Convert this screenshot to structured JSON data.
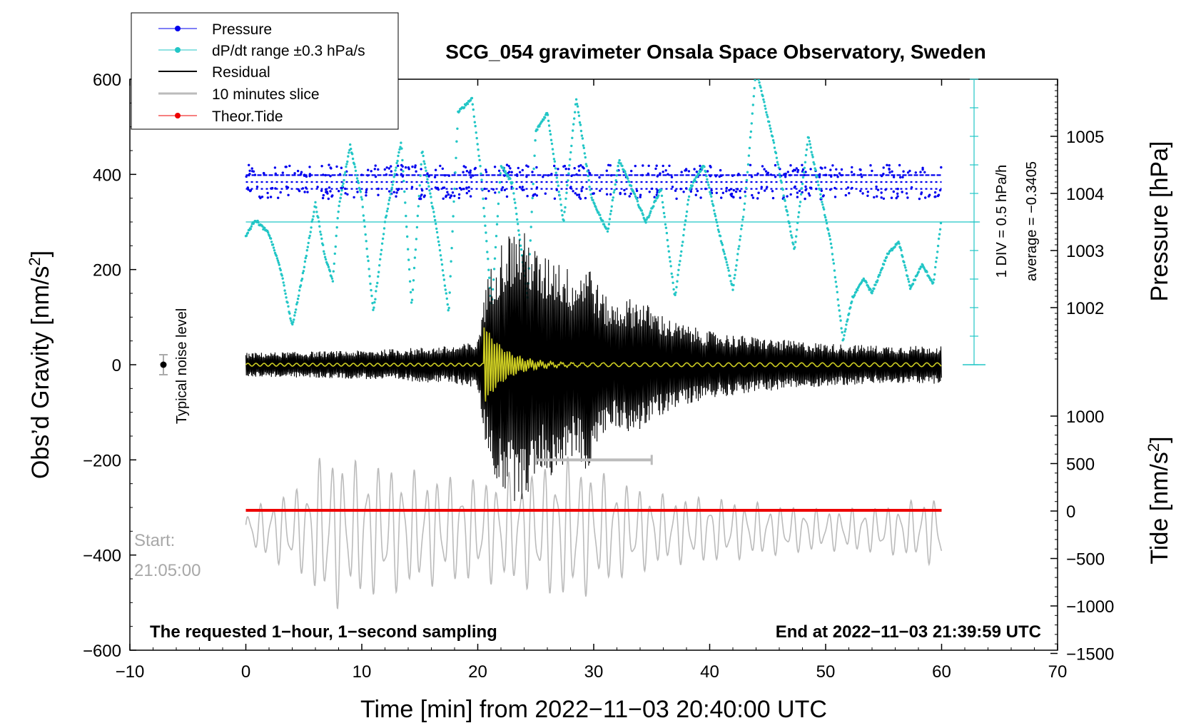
{
  "chart_data": {
    "type": "line",
    "title": "SCG_054 gravimeter Onsala Space Observatory, Sweden",
    "xlabel": "Time [min] from 2022−11−03 20:40:00 UTC",
    "ylabel": "Obs’d Gravity [nm/s²]",
    "ylabel_main": "Obs’d Gravity [nm/s",
    "ylabel_sup": "2",
    "ylabel_end": "]",
    "pressure_label": "Pressure [hPa]",
    "tide_label_main": "Tide [nm/s",
    "tide_label_sup": "2",
    "tide_label_end": "]",
    "xlim": [
      -10,
      70
    ],
    "ylim": [
      -600,
      600
    ],
    "x_ticks": [
      "−10",
      "0",
      "10",
      "20",
      "30",
      "40",
      "50",
      "60",
      "70"
    ],
    "x_tick_values": [
      -10,
      0,
      10,
      20,
      30,
      40,
      50,
      60,
      70
    ],
    "y_ticks": [
      "600",
      "400",
      "200",
      "0",
      "−200",
      "−400",
      "−600"
    ],
    "y_tick_values": [
      600,
      400,
      200,
      0,
      -200,
      -400,
      -600
    ],
    "pressure_ticks": [
      "1005",
      "1004",
      "1003",
      "1002"
    ],
    "pressure_tick_values": [
      1005,
      1004,
      1003,
      1002
    ],
    "pressure_range": [
      1001.0,
      1005.9
    ],
    "tide_ticks": [
      "1000",
      "500",
      "0",
      "−500",
      "−1000",
      "−1500"
    ],
    "tide_tick_values": [
      1000,
      500,
      0,
      -500,
      -1000,
      -1500
    ],
    "tide_range": [
      -1500,
      1000
    ],
    "legend": [
      {
        "label": "Pressure",
        "color": "#0000ee",
        "marker": "dot"
      },
      {
        "label": "dP/dt range ±0.3 hPa/s",
        "color": "#22c6c6",
        "marker": "dot"
      },
      {
        "label": "Residual",
        "color": "#000000",
        "marker": "line"
      },
      {
        "label": "10 minutes slice",
        "color": "#bbbbbb",
        "marker": "line"
      },
      {
        "label": "Theor.Tide",
        "color": "#ee0000",
        "marker": "dot"
      }
    ],
    "annotations": {
      "bottom_left": "The requested 1−hour, 1−second sampling",
      "bottom_right": "End at 2022−11−03 21:39:59 UTC",
      "start_label": "Start:",
      "start_time": "21:05:00",
      "noise_label": "Typical noise level",
      "div_label": "1 DIV = 0.5 hPa/h",
      "average_label": "average = −0.3405"
    },
    "series": [
      {
        "name": "Pressure",
        "color": "#0000ee",
        "units": "hPa",
        "band_centers": [
          1004.32,
          1004.2,
          1004.08
        ],
        "minute_range": [
          0,
          60
        ]
      },
      {
        "name": "dP/dt",
        "color": "#22c6c6",
        "units": "nm/s² plot units",
        "x": [
          0,
          0.8,
          2,
          3,
          4,
          5,
          6,
          6.8,
          7.5,
          8,
          9,
          10,
          11,
          12,
          13.4,
          14.3,
          15.2,
          16.5,
          17.5,
          18.3,
          19.5,
          20.3,
          21.2,
          22,
          23,
          24.3,
          25,
          26,
          27.4,
          28.5,
          29.8,
          31.2,
          32.2,
          33.3,
          34.5,
          35.8,
          37,
          38.3,
          39.5,
          40.8,
          42,
          43,
          44,
          45.5,
          47.3,
          48.5,
          50.5,
          51.5,
          52.3,
          53.3,
          54,
          55.3,
          56.3,
          57.3,
          58.3,
          59.3,
          60
        ],
        "values": [
          270,
          305,
          275,
          200,
          80,
          200,
          340,
          230,
          175,
          330,
          460,
          350,
          110,
          300,
          470,
          120,
          450,
          280,
          110,
          530,
          560,
          400,
          120,
          420,
          380,
          140,
          490,
          530,
          300,
          560,
          350,
          280,
          430,
          370,
          300,
          370,
          140,
          370,
          420,
          280,
          160,
          330,
          620,
          470,
          240,
          480,
          250,
          50,
          140,
          180,
          150,
          230,
          260,
          160,
          210,
          170,
          310
        ],
        "reference_level": 300
      },
      {
        "name": "Residual",
        "color": "#000000",
        "units": "nm/s²",
        "minute_range": [
          0,
          60
        ],
        "envelope_x": [
          0,
          10,
          14,
          18,
          20,
          20.5,
          21.5,
          22.5,
          23.5,
          24.5,
          25.5,
          26.5,
          27.5,
          28.5,
          29.5,
          30.5,
          31.5,
          33,
          34,
          35,
          37,
          40,
          45,
          50,
          55,
          60
        ],
        "envelope": [
          25,
          30,
          35,
          40,
          50,
          150,
          240,
          280,
          290,
          270,
          220,
          240,
          210,
          190,
          230,
          160,
          130,
          140,
          140,
          120,
          90,
          70,
          55,
          45,
          40,
          40
        ]
      },
      {
        "name": "Filtered residual",
        "color": "#cccc22",
        "units": "nm/s²",
        "onset_minute": 20.5,
        "peak_amplitude": 85
      },
      {
        "name": "10 minutes slice",
        "color": "#bbbbbb",
        "units": "nm/s² (tide axis)",
        "interval": [
          25,
          35
        ],
        "level": -200
      },
      {
        "name": "Theor.Tide",
        "color": "#ee0000",
        "units": "nm/s²",
        "x": [
          0,
          60
        ],
        "values": [
          -306,
          -306
        ]
      },
      {
        "name": "Gray overlay",
        "color": "#bbbbbb",
        "units": "tide axis",
        "envelope_x": [
          0,
          5,
          7,
          9,
          12,
          16,
          20,
          22,
          25,
          28,
          30,
          33,
          36,
          40,
          45,
          50,
          55,
          57,
          60
        ],
        "envelope": [
          200,
          500,
          900,
          750,
          700,
          600,
          550,
          600,
          650,
          800,
          650,
          500,
          380,
          350,
          280,
          220,
          250,
          300,
          400
        ]
      }
    ]
  }
}
